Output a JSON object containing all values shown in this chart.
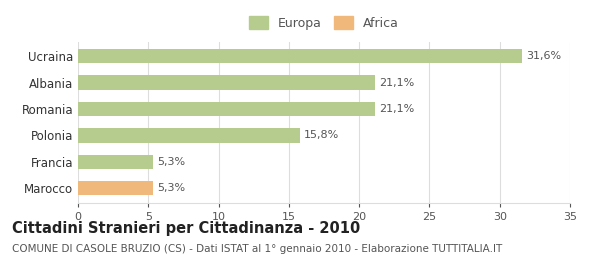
{
  "categories": [
    "Marocco",
    "Francia",
    "Polonia",
    "Romania",
    "Albania",
    "Ucraina"
  ],
  "values": [
    5.3,
    5.3,
    15.8,
    21.1,
    21.1,
    31.6
  ],
  "labels": [
    "5,3%",
    "5,3%",
    "15,8%",
    "21,1%",
    "21,1%",
    "31,6%"
  ],
  "colors": [
    "#f0b87a",
    "#b5cc8e",
    "#b5cc8e",
    "#b5cc8e",
    "#b5cc8e",
    "#b5cc8e"
  ],
  "legend_items": [
    {
      "label": "Europa",
      "color": "#b5cc8e"
    },
    {
      "label": "Africa",
      "color": "#f0b87a"
    }
  ],
  "xlim": [
    0,
    35
  ],
  "xticks": [
    0,
    5,
    10,
    15,
    20,
    25,
    30,
    35
  ],
  "title": "Cittadini Stranieri per Cittadinanza - 2010",
  "subtitle": "COMUNE DI CASOLE BRUZIO (CS) - Dati ISTAT al 1° gennaio 2010 - Elaborazione TUTTITALIA.IT",
  "background_color": "#ffffff",
  "bar_edge_color": "none",
  "grid_color": "#dddddd",
  "title_fontsize": 10.5,
  "subtitle_fontsize": 7.5,
  "label_fontsize": 8,
  "ytick_fontsize": 8.5,
  "xtick_fontsize": 8
}
